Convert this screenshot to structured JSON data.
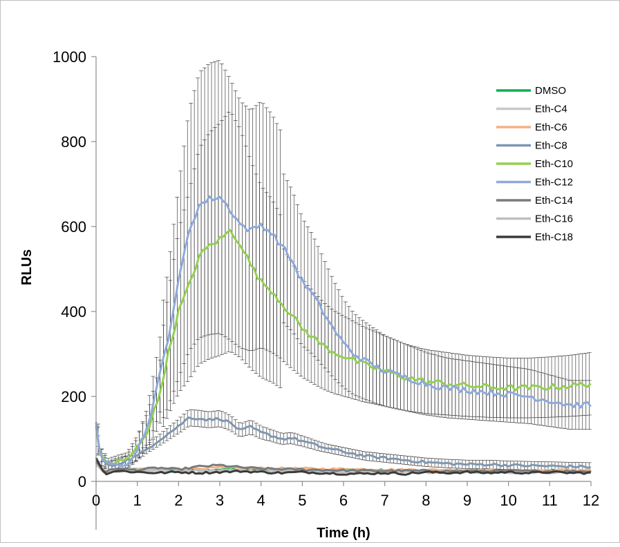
{
  "chart_data": {
    "type": "line",
    "title": "",
    "xlabel": "Time (h)",
    "ylabel": "RLUs",
    "xlim": [
      0,
      12
    ],
    "ylim": [
      0,
      1000
    ],
    "x_ticks": [
      "0",
      "1",
      "2",
      "3",
      "4",
      "5",
      "6",
      "7",
      "8",
      "9",
      "10",
      "11",
      "12"
    ],
    "y_ticks": [
      "0",
      "200",
      "400",
      "600",
      "800",
      "1000"
    ],
    "grid": false,
    "legend_position": "top-right",
    "error_bars": true,
    "series": [
      {
        "name": "DMSO",
        "color": "#00B050",
        "points": [
          [
            0,
            45
          ],
          [
            0.2,
            22
          ],
          [
            0.5,
            25
          ],
          [
            1,
            28
          ],
          [
            1.5,
            30
          ],
          [
            2,
            26
          ],
          [
            3,
            28
          ],
          [
            4,
            27
          ],
          [
            5,
            26
          ],
          [
            6,
            27
          ],
          [
            7,
            26
          ],
          [
            8,
            24
          ],
          [
            9,
            26
          ],
          [
            10,
            24
          ],
          [
            11,
            25
          ],
          [
            12,
            25
          ]
        ]
      },
      {
        "name": "Eth-C4",
        "color": "#C8C8C8",
        "points": [
          [
            0,
            40
          ],
          [
            0.2,
            20
          ],
          [
            0.5,
            22
          ],
          [
            1,
            24
          ],
          [
            1.5,
            26
          ],
          [
            2,
            24
          ],
          [
            3,
            25
          ],
          [
            4,
            24
          ],
          [
            5,
            23
          ],
          [
            6,
            22
          ],
          [
            7,
            22
          ],
          [
            8,
            21
          ],
          [
            9,
            22
          ],
          [
            10,
            21
          ],
          [
            11,
            22
          ],
          [
            12,
            22
          ]
        ]
      },
      {
        "name": "Eth-C6",
        "color": "#F4B183",
        "points": [
          [
            0,
            42
          ],
          [
            0.2,
            24
          ],
          [
            0.5,
            26
          ],
          [
            1,
            28
          ],
          [
            1.5,
            30
          ],
          [
            2,
            30
          ],
          [
            3,
            32
          ],
          [
            4,
            31
          ],
          [
            5,
            30
          ],
          [
            6,
            29
          ],
          [
            7,
            28
          ],
          [
            8,
            27
          ],
          [
            9,
            27
          ],
          [
            10,
            26
          ],
          [
            11,
            26
          ],
          [
            12,
            27
          ]
        ]
      },
      {
        "name": "Eth-C8",
        "color": "#7F96B0",
        "points": [
          [
            0,
            130
          ],
          [
            0.1,
            60
          ],
          [
            0.3,
            35
          ],
          [
            0.5,
            40
          ],
          [
            1,
            60
          ],
          [
            1.5,
            95
          ],
          [
            2,
            130
          ],
          [
            2.25,
            150
          ],
          [
            2.5,
            148
          ],
          [
            2.75,
            145
          ],
          [
            3,
            148
          ],
          [
            3.25,
            138
          ],
          [
            3.5,
            120
          ],
          [
            3.75,
            128
          ],
          [
            4,
            115
          ],
          [
            4.25,
            108
          ],
          [
            4.5,
            100
          ],
          [
            4.75,
            102
          ],
          [
            5,
            95
          ],
          [
            5.5,
            80
          ],
          [
            6,
            70
          ],
          [
            6.5,
            60
          ],
          [
            7,
            55
          ],
          [
            7.5,
            50
          ],
          [
            8,
            45
          ],
          [
            8.5,
            42
          ],
          [
            9,
            40
          ],
          [
            9.5,
            40
          ],
          [
            10,
            38
          ],
          [
            10.5,
            37
          ],
          [
            11,
            36
          ],
          [
            11.5,
            35
          ],
          [
            12,
            34
          ]
        ]
      },
      {
        "name": "Eth-C10",
        "color": "#92D050",
        "points": [
          [
            0,
            130
          ],
          [
            0.1,
            60
          ],
          [
            0.3,
            40
          ],
          [
            0.5,
            45
          ],
          [
            0.75,
            50
          ],
          [
            1,
            80
          ],
          [
            1.25,
            120
          ],
          [
            1.5,
            190
          ],
          [
            1.75,
            300
          ],
          [
            2,
            400
          ],
          [
            2.25,
            460
          ],
          [
            2.5,
            530
          ],
          [
            2.75,
            555
          ],
          [
            3,
            570
          ],
          [
            3.25,
            590
          ],
          [
            3.5,
            560
          ],
          [
            3.75,
            510
          ],
          [
            4,
            470
          ],
          [
            4.25,
            450
          ],
          [
            4.5,
            420
          ],
          [
            4.75,
            390
          ],
          [
            5,
            360
          ],
          [
            5.25,
            340
          ],
          [
            5.5,
            320
          ],
          [
            5.75,
            305
          ],
          [
            6,
            295
          ],
          [
            6.5,
            275
          ],
          [
            7,
            260
          ],
          [
            7.5,
            245
          ],
          [
            8,
            235
          ],
          [
            8.5,
            230
          ],
          [
            9,
            225
          ],
          [
            9.5,
            222
          ],
          [
            10,
            220
          ],
          [
            10.5,
            220
          ],
          [
            11,
            222
          ],
          [
            11.5,
            225
          ],
          [
            12,
            230
          ]
        ]
      },
      {
        "name": "Eth-C12",
        "color": "#8EA9DB",
        "points": [
          [
            0,
            140
          ],
          [
            0.1,
            60
          ],
          [
            0.3,
            35
          ],
          [
            0.5,
            40
          ],
          [
            0.75,
            45
          ],
          [
            1,
            75
          ],
          [
            1.25,
            130
          ],
          [
            1.5,
            230
          ],
          [
            1.75,
            340
          ],
          [
            2,
            470
          ],
          [
            2.25,
            590
          ],
          [
            2.5,
            650
          ],
          [
            2.75,
            665
          ],
          [
            3,
            670
          ],
          [
            3.25,
            640
          ],
          [
            3.5,
            605
          ],
          [
            3.75,
            590
          ],
          [
            4,
            605
          ],
          [
            4.25,
            585
          ],
          [
            4.5,
            555
          ],
          [
            4.75,
            520
          ],
          [
            5,
            470
          ],
          [
            5.25,
            440
          ],
          [
            5.5,
            400
          ],
          [
            5.75,
            360
          ],
          [
            6,
            325
          ],
          [
            6.25,
            300
          ],
          [
            6.5,
            285
          ],
          [
            7,
            260
          ],
          [
            7.5,
            245
          ],
          [
            8,
            230
          ],
          [
            8.5,
            220
          ],
          [
            9,
            215
          ],
          [
            9.5,
            210
          ],
          [
            10,
            205
          ],
          [
            10.5,
            200
          ],
          [
            11,
            190
          ],
          [
            11.5,
            180
          ],
          [
            12,
            180
          ]
        ]
      },
      {
        "name": "Eth-C14",
        "color": "#7A7A7A",
        "points": [
          [
            0,
            48
          ],
          [
            0.2,
            22
          ],
          [
            0.5,
            30
          ],
          [
            1,
            27
          ],
          [
            1.5,
            32
          ],
          [
            2,
            28
          ],
          [
            2.5,
            35
          ],
          [
            3,
            38
          ],
          [
            3.5,
            33
          ],
          [
            4,
            30
          ],
          [
            5,
            28
          ],
          [
            6,
            26
          ],
          [
            7,
            25
          ],
          [
            8,
            25
          ],
          [
            9,
            24
          ],
          [
            10,
            25
          ],
          [
            11,
            24
          ],
          [
            12,
            24
          ]
        ]
      },
      {
        "name": "Eth-C16",
        "color": "#BFBFBF",
        "points": [
          [
            0,
            44
          ],
          [
            0.2,
            20
          ],
          [
            0.5,
            24
          ],
          [
            1,
            26
          ],
          [
            1.5,
            28
          ],
          [
            2,
            25
          ],
          [
            3,
            26
          ],
          [
            4,
            25
          ],
          [
            5,
            24
          ],
          [
            6,
            23
          ],
          [
            7,
            22
          ],
          [
            8,
            22
          ],
          [
            9,
            22
          ],
          [
            10,
            22
          ],
          [
            11,
            21
          ],
          [
            12,
            21
          ]
        ]
      },
      {
        "name": "Eth-C18",
        "color": "#3A3A3A",
        "points": [
          [
            0,
            55
          ],
          [
            0.2,
            18
          ],
          [
            0.5,
            25
          ],
          [
            1,
            22
          ],
          [
            1.5,
            20
          ],
          [
            2,
            22
          ],
          [
            2.5,
            20
          ],
          [
            3,
            22
          ],
          [
            3.5,
            24
          ],
          [
            4,
            22
          ],
          [
            4.5,
            20
          ],
          [
            5,
            22
          ],
          [
            5.5,
            20
          ],
          [
            6,
            18
          ],
          [
            6.5,
            18
          ],
          [
            7,
            20
          ],
          [
            7.5,
            18
          ],
          [
            8,
            22
          ],
          [
            8.5,
            20
          ],
          [
            9,
            22
          ],
          [
            9.5,
            20
          ],
          [
            10,
            22
          ],
          [
            10.5,
            20
          ],
          [
            11,
            22
          ],
          [
            11.5,
            20
          ],
          [
            12,
            20
          ]
        ]
      }
    ]
  }
}
